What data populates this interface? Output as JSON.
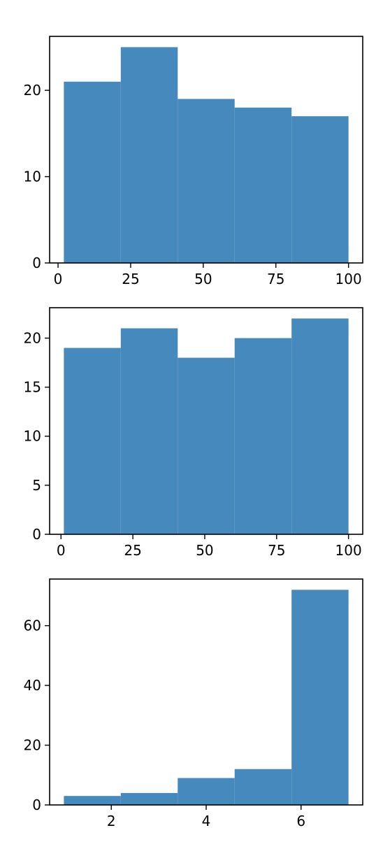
{
  "chart_data": [
    {
      "type": "bar",
      "histogram": true,
      "bins": [
        {
          "start": 2,
          "end": 21.6,
          "count": 21
        },
        {
          "start": 21.6,
          "end": 41.2,
          "count": 25
        },
        {
          "start": 41.2,
          "end": 60.8,
          "count": 19
        },
        {
          "start": 60.8,
          "end": 80.4,
          "count": 18
        },
        {
          "start": 80.4,
          "end": 100,
          "count": 17
        }
      ],
      "xlim": [
        -2.9,
        104.9
      ],
      "ylim": [
        0,
        26.25
      ],
      "xticks": [
        0,
        25,
        50,
        75,
        100
      ],
      "yticks": [
        0,
        10,
        20
      ],
      "color": "#4589bd"
    },
    {
      "type": "bar",
      "histogram": true,
      "bins": [
        {
          "start": 1,
          "end": 20.8,
          "count": 19
        },
        {
          "start": 20.8,
          "end": 40.6,
          "count": 21
        },
        {
          "start": 40.6,
          "end": 60.4,
          "count": 18
        },
        {
          "start": 60.4,
          "end": 80.2,
          "count": 20
        },
        {
          "start": 80.2,
          "end": 100,
          "count": 22
        }
      ],
      "xlim": [
        -3.95,
        104.95
      ],
      "ylim": [
        0,
        23.1
      ],
      "xticks": [
        0,
        25,
        50,
        75,
        100
      ],
      "yticks": [
        0,
        5,
        10,
        15,
        20
      ],
      "color": "#4589bd"
    },
    {
      "type": "bar",
      "histogram": true,
      "bins": [
        {
          "start": 1,
          "end": 2.2,
          "count": 3
        },
        {
          "start": 2.2,
          "end": 3.4,
          "count": 4
        },
        {
          "start": 3.4,
          "end": 4.6,
          "count": 9
        },
        {
          "start": 4.6,
          "end": 5.8,
          "count": 12
        },
        {
          "start": 5.8,
          "end": 7,
          "count": 72
        }
      ],
      "xlim": [
        0.7,
        7.3
      ],
      "ylim": [
        0,
        75.6
      ],
      "xticks": [
        2,
        4,
        6
      ],
      "yticks": [
        0,
        20,
        40,
        60
      ],
      "color": "#4589bd"
    }
  ]
}
